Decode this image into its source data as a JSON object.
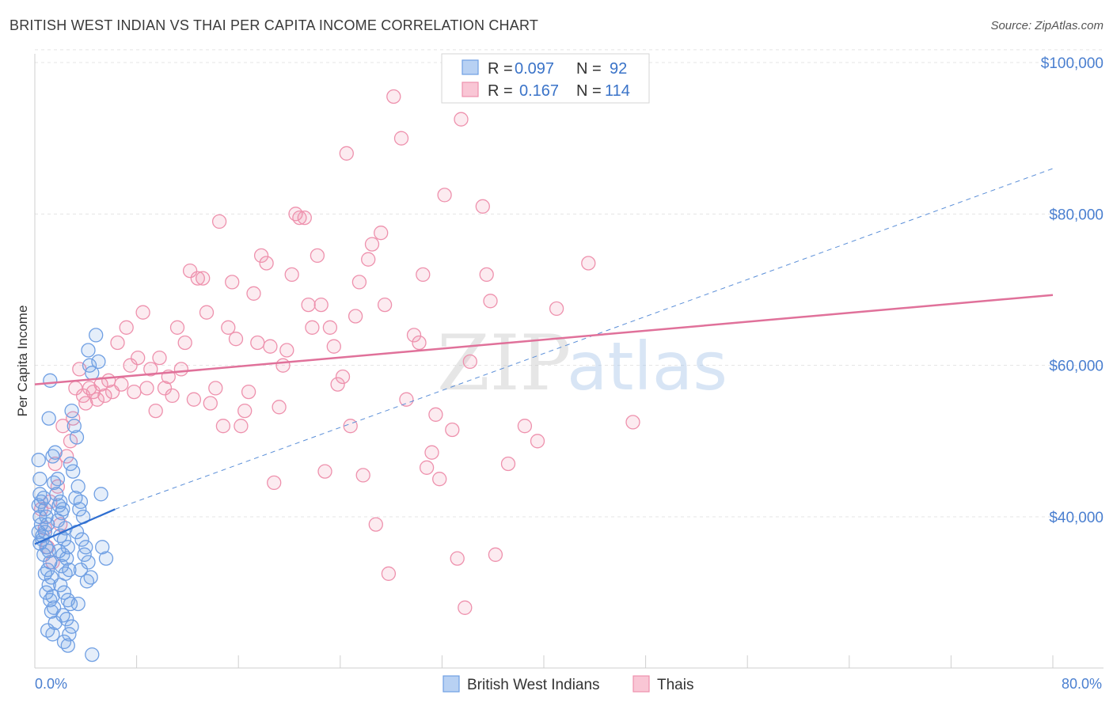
{
  "title": "BRITISH WEST INDIAN VS THAI PER CAPITA INCOME CORRELATION CHART",
  "source": "Source: ZipAtlas.com",
  "watermark": {
    "part1": "ZIP",
    "part2": "atlas"
  },
  "colors": {
    "blue": "#6f9fe3",
    "blue_line": "#2f6fd1",
    "pink": "#ee91ad",
    "pink_line": "#e0719a",
    "axis_text": "#4a7fd0"
  },
  "legend": {
    "rows": [
      {
        "r_label": "R =",
        "r_value": "0.097",
        "n_label": "N =",
        "n_value": "92"
      },
      {
        "r_label": "R =",
        "r_value": "0.167",
        "n_label": "N =",
        "n_value": "114"
      }
    ]
  },
  "bottom_legend": {
    "items": [
      "British West Indians",
      "Thais"
    ]
  },
  "chart_data": {
    "type": "scatter",
    "ylabel": "Per Capita Income",
    "xlim": [
      0,
      80
    ],
    "ylim": [
      22000,
      102000
    ],
    "x_tick_labels": [
      "0.0%",
      "80.0%"
    ],
    "y_ticks": [
      {
        "value": 40000,
        "label": "$40,000"
      },
      {
        "value": 60000,
        "label": "$60,000"
      },
      {
        "value": 80000,
        "label": "$80,000"
      },
      {
        "value": 100000,
        "label": "$100,000"
      }
    ],
    "grid": true,
    "series": [
      {
        "name": "British West Indians",
        "r": 0.097,
        "n": 92,
        "trend": {
          "x": [
            0,
            6.3
          ],
          "y": [
            36400,
            41000
          ],
          "extension_x": [
            6.3,
            80
          ],
          "extension_y": [
            41000,
            86000
          ]
        },
        "points": [
          [
            0.3,
            47.5
          ],
          [
            0.4,
            45
          ],
          [
            0.4,
            43
          ],
          [
            0.5,
            42
          ],
          [
            0.3,
            41.5
          ],
          [
            0.4,
            40
          ],
          [
            0.5,
            39
          ],
          [
            0.3,
            38
          ],
          [
            0.6,
            37.5
          ],
          [
            0.4,
            36.5
          ],
          [
            0.7,
            42.5
          ],
          [
            0.8,
            41
          ],
          [
            0.9,
            40
          ],
          [
            1.0,
            39
          ],
          [
            0.8,
            38
          ],
          [
            0.6,
            37
          ],
          [
            0.9,
            36
          ],
          [
            1.1,
            35.5
          ],
          [
            0.7,
            35
          ],
          [
            1.2,
            34
          ],
          [
            1.0,
            33
          ],
          [
            0.8,
            32.5
          ],
          [
            1.3,
            32
          ],
          [
            1.1,
            31
          ],
          [
            0.9,
            30
          ],
          [
            1.4,
            29.5
          ],
          [
            1.2,
            29
          ],
          [
            1.5,
            28
          ],
          [
            1.3,
            27.5
          ],
          [
            1.6,
            26
          ],
          [
            1.0,
            25
          ],
          [
            1.4,
            24.5
          ],
          [
            1.2,
            58
          ],
          [
            1.1,
            53
          ],
          [
            1.6,
            48.5
          ],
          [
            1.4,
            48
          ],
          [
            1.8,
            45
          ],
          [
            1.5,
            44.5
          ],
          [
            1.7,
            43
          ],
          [
            2.0,
            42
          ],
          [
            1.9,
            41.5
          ],
          [
            2.2,
            41
          ],
          [
            2.1,
            40.5
          ],
          [
            1.8,
            39.5
          ],
          [
            2.4,
            38.5
          ],
          [
            2.0,
            37.5
          ],
          [
            2.3,
            37
          ],
          [
            2.6,
            36
          ],
          [
            1.9,
            35.5
          ],
          [
            2.2,
            35
          ],
          [
            2.5,
            34.5
          ],
          [
            2.1,
            33.5
          ],
          [
            2.7,
            33
          ],
          [
            2.4,
            32.5
          ],
          [
            2.0,
            31
          ],
          [
            2.3,
            30
          ],
          [
            2.6,
            29
          ],
          [
            2.8,
            28.5
          ],
          [
            2.2,
            27
          ],
          [
            2.5,
            26.5
          ],
          [
            2.9,
            25.5
          ],
          [
            2.7,
            24.5
          ],
          [
            2.3,
            23.5
          ],
          [
            2.6,
            23
          ],
          [
            2.9,
            54
          ],
          [
            3.1,
            52
          ],
          [
            3.3,
            50.5
          ],
          [
            2.8,
            47
          ],
          [
            3.0,
            46
          ],
          [
            3.4,
            44
          ],
          [
            3.2,
            42.5
          ],
          [
            3.6,
            42
          ],
          [
            3.5,
            41
          ],
          [
            3.8,
            40
          ],
          [
            3.3,
            38
          ],
          [
            3.7,
            37
          ],
          [
            4.0,
            36
          ],
          [
            3.9,
            35
          ],
          [
            4.2,
            34
          ],
          [
            3.6,
            33
          ],
          [
            4.4,
            32
          ],
          [
            4.1,
            31.5
          ],
          [
            3.4,
            28.5
          ],
          [
            4.3,
            60
          ],
          [
            4.5,
            59
          ],
          [
            4.8,
            64
          ],
          [
            4.2,
            62
          ],
          [
            5.0,
            60.5
          ],
          [
            5.2,
            43
          ],
          [
            5.3,
            36
          ],
          [
            5.6,
            34.5
          ],
          [
            4.5,
            21.8
          ]
        ]
      },
      {
        "name": "Thais",
        "r": 0.167,
        "n": 114,
        "trend": {
          "x": [
            0,
            80
          ],
          "y": [
            57500,
            69300
          ]
        },
        "points": [
          [
            0.5,
            41
          ],
          [
            0.8,
            38.5
          ],
          [
            1.0,
            36
          ],
          [
            1.2,
            42
          ],
          [
            1.4,
            34
          ],
          [
            1.6,
            47
          ],
          [
            1.8,
            44
          ],
          [
            2.0,
            39
          ],
          [
            2.2,
            52
          ],
          [
            2.5,
            48
          ],
          [
            2.8,
            50
          ],
          [
            3.0,
            53
          ],
          [
            3.2,
            57
          ],
          [
            3.5,
            59.5
          ],
          [
            3.8,
            56
          ],
          [
            4.0,
            55
          ],
          [
            4.3,
            57
          ],
          [
            4.6,
            56.5
          ],
          [
            4.9,
            55.5
          ],
          [
            5.2,
            57.5
          ],
          [
            5.5,
            56
          ],
          [
            5.8,
            58
          ],
          [
            6.1,
            56.5
          ],
          [
            6.5,
            63
          ],
          [
            6.8,
            57.5
          ],
          [
            7.2,
            65
          ],
          [
            7.5,
            60
          ],
          [
            7.8,
            56.5
          ],
          [
            8.1,
            61
          ],
          [
            8.5,
            67
          ],
          [
            8.8,
            57
          ],
          [
            9.1,
            59.5
          ],
          [
            9.5,
            54
          ],
          [
            9.8,
            61
          ],
          [
            10.2,
            57
          ],
          [
            10.5,
            58.5
          ],
          [
            10.8,
            56
          ],
          [
            11.2,
            65
          ],
          [
            11.5,
            59.5
          ],
          [
            11.8,
            63
          ],
          [
            12.2,
            72.5
          ],
          [
            12.5,
            55.5
          ],
          [
            12.8,
            71.5
          ],
          [
            13.2,
            71.5
          ],
          [
            13.5,
            67
          ],
          [
            13.8,
            55
          ],
          [
            14.2,
            57
          ],
          [
            14.5,
            79
          ],
          [
            14.8,
            52
          ],
          [
            15.2,
            65
          ],
          [
            15.5,
            71
          ],
          [
            15.8,
            63.5
          ],
          [
            16.2,
            52
          ],
          [
            16.5,
            54
          ],
          [
            16.8,
            56.5
          ],
          [
            17.2,
            69.5
          ],
          [
            17.5,
            63
          ],
          [
            17.8,
            74.5
          ],
          [
            18.2,
            73.5
          ],
          [
            18.5,
            62.5
          ],
          [
            18.8,
            44.5
          ],
          [
            19.2,
            54.5
          ],
          [
            19.5,
            60
          ],
          [
            19.8,
            62
          ],
          [
            20.2,
            72
          ],
          [
            20.5,
            80
          ],
          [
            20.8,
            79.5
          ],
          [
            21.2,
            79.5
          ],
          [
            21.5,
            68
          ],
          [
            21.8,
            65
          ],
          [
            22.2,
            74.5
          ],
          [
            22.5,
            68
          ],
          [
            22.8,
            46
          ],
          [
            23.2,
            65
          ],
          [
            23.5,
            62.5
          ],
          [
            23.8,
            57.5
          ],
          [
            24.2,
            58.5
          ],
          [
            24.5,
            88
          ],
          [
            24.8,
            52
          ],
          [
            25.2,
            66.5
          ],
          [
            25.5,
            71
          ],
          [
            25.8,
            45.5
          ],
          [
            26.2,
            74
          ],
          [
            26.5,
            76
          ],
          [
            26.8,
            39
          ],
          [
            27.2,
            77.5
          ],
          [
            27.5,
            68
          ],
          [
            27.8,
            32.5
          ],
          [
            28.2,
            95.5
          ],
          [
            28.8,
            90
          ],
          [
            29.2,
            55.5
          ],
          [
            29.8,
            64
          ],
          [
            30.2,
            63
          ],
          [
            30.5,
            72
          ],
          [
            30.8,
            46.5
          ],
          [
            31.2,
            48.5
          ],
          [
            31.5,
            53.5
          ],
          [
            31.8,
            45
          ],
          [
            32.2,
            82.5
          ],
          [
            32.8,
            51.5
          ],
          [
            33.2,
            34.5
          ],
          [
            33.5,
            92.5
          ],
          [
            33.8,
            28
          ],
          [
            34.2,
            60.5
          ],
          [
            35.2,
            81
          ],
          [
            35.5,
            72
          ],
          [
            35.8,
            68.5
          ],
          [
            36.2,
            35
          ],
          [
            37.2,
            47
          ],
          [
            38.5,
            52
          ],
          [
            39.5,
            50
          ],
          [
            41,
            67.5
          ],
          [
            43.5,
            73.5
          ],
          [
            47,
            52.5
          ]
        ]
      }
    ]
  }
}
